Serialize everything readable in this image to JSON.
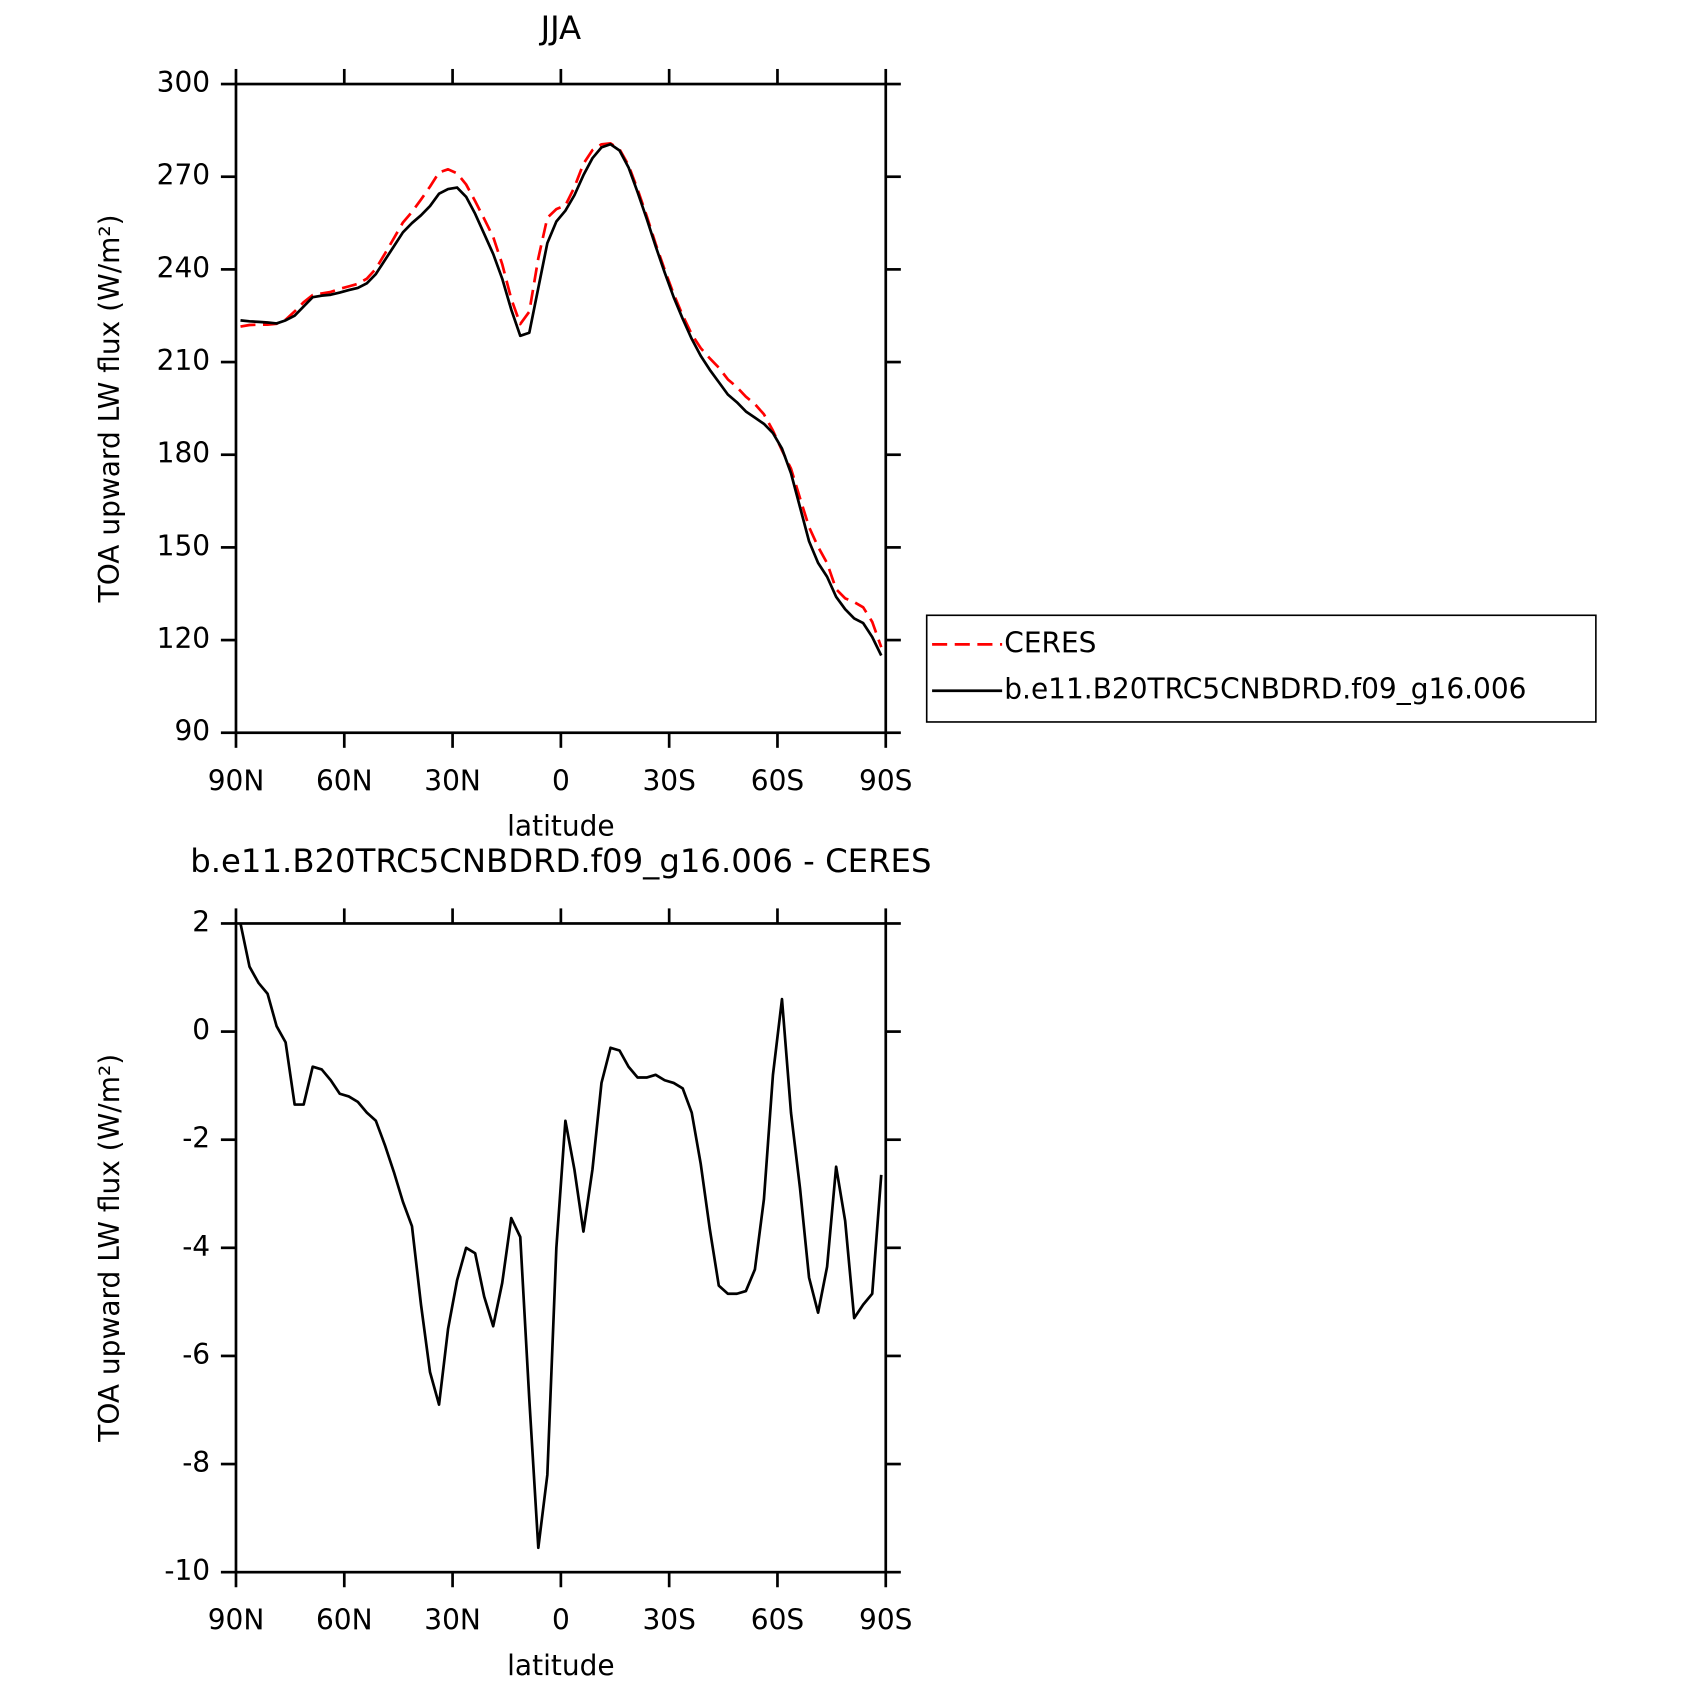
{
  "chart_data": [
    {
      "type": "line",
      "title": "JJA",
      "xlabel": "latitude",
      "ylabel": "TOA upward LW flux (W/m²)",
      "x": [
        88.75,
        86.25,
        83.75,
        81.25,
        78.75,
        76.25,
        73.75,
        71.25,
        68.75,
        66.25,
        63.75,
        61.25,
        58.75,
        56.25,
        53.75,
        51.25,
        48.75,
        46.25,
        43.75,
        41.25,
        38.75,
        36.25,
        33.75,
        31.25,
        28.75,
        26.25,
        23.75,
        21.25,
        18.75,
        16.25,
        13.75,
        11.25,
        8.75,
        6.25,
        3.75,
        1.25,
        -1.25,
        -3.75,
        -6.25,
        -8.75,
        -11.25,
        -13.75,
        -16.25,
        -18.75,
        -21.25,
        -23.75,
        -26.25,
        -28.75,
        -31.25,
        -33.75,
        -36.25,
        -38.75,
        -41.25,
        -43.75,
        -46.25,
        -48.75,
        -51.25,
        -53.75,
        -56.25,
        -58.75,
        -61.25,
        -63.75,
        -66.25,
        -68.75,
        -71.25,
        -73.75,
        -76.25,
        -78.75,
        -81.25,
        -83.75,
        -86.25,
        -88.75
      ],
      "series": [
        {
          "name": "CERES",
          "color": "#ff0000",
          "dashed": true,
          "values": [
            221.5,
            222,
            222.1,
            222.1,
            222.4,
            223.7,
            226.4,
            229.4,
            231.7,
            232.2,
            232.7,
            233.7,
            234.5,
            235.3,
            237,
            240.2,
            245.1,
            250.1,
            255.2,
            258.6,
            262.6,
            266.8,
            271.4,
            272.4,
            271.1,
            267.5,
            262.1,
            256.4,
            250.5,
            241.7,
            230.5,
            222.3,
            226.3,
            243.6,
            256.7,
            259.5,
            260.7,
            266.6,
            274.2,
            278.6,
            280.5,
            280.8,
            278.9,
            273.7,
            265.9,
            257.4,
            248.3,
            239.9,
            232,
            225.1,
            219,
            214.5,
            211.2,
            208.2,
            204.4,
            201.9,
            198.8,
            196.4,
            193.1,
            187.8,
            181.4,
            175.5,
            165.9,
            156.6,
            150.2,
            144.9,
            136.5,
            133.5,
            132.3,
            130.6,
            125.9,
            117.7
          ]
        },
        {
          "name": "b.e11.B20TRC5CNBDRD.f09_g16.006",
          "color": "#000000",
          "dashed": false,
          "values": [
            223.5,
            223.2,
            223,
            222.8,
            222.5,
            223.5,
            225,
            228,
            231,
            231.5,
            231.8,
            232.5,
            233.3,
            234,
            235.5,
            238.5,
            243,
            247.5,
            252,
            255,
            257.5,
            260.5,
            264.5,
            266,
            266.5,
            263.5,
            258,
            251.5,
            245,
            237,
            227,
            218.5,
            219.5,
            234,
            248.5,
            255.5,
            259,
            264,
            270.5,
            276,
            279.5,
            280.5,
            278.5,
            273,
            265,
            256.5,
            247.5,
            239,
            231,
            224,
            217.5,
            212,
            207.5,
            203.5,
            199.5,
            197,
            194,
            192,
            190,
            187,
            182,
            174,
            163,
            152,
            145,
            140.5,
            134,
            130,
            127,
            125.5,
            121,
            115
          ]
        }
      ],
      "xlim": [
        90,
        -90
      ],
      "xticks": [
        {
          "value": 90,
          "label": "90N"
        },
        {
          "value": 60,
          "label": "60N"
        },
        {
          "value": 30,
          "label": "30N"
        },
        0,
        {
          "value": -30,
          "label": "30S"
        },
        {
          "value": -60,
          "label": "60S"
        },
        {
          "value": -90,
          "label": "90S"
        }
      ],
      "ylim": [
        90,
        300
      ],
      "yticks": [
        90,
        120,
        150,
        180,
        210,
        240,
        270,
        300
      ],
      "legend": "right"
    },
    {
      "type": "line",
      "title": "b.e11.B20TRC5CNBDRD.f09_g16.006 - CERES",
      "xlabel": "latitude",
      "ylabel": "TOA upward LW flux (W/m²)",
      "x": [
        88.75,
        86.25,
        83.75,
        81.25,
        78.75,
        76.25,
        73.75,
        71.25,
        68.75,
        66.25,
        63.75,
        61.25,
        58.75,
        56.25,
        53.75,
        51.25,
        48.75,
        46.25,
        43.75,
        41.25,
        38.75,
        36.25,
        33.75,
        31.25,
        28.75,
        26.25,
        23.75,
        21.25,
        18.75,
        16.25,
        13.75,
        11.25,
        8.75,
        6.25,
        3.75,
        1.25,
        -1.25,
        -3.75,
        -6.25,
        -8.75,
        -11.25,
        -13.75,
        -16.25,
        -18.75,
        -21.25,
        -23.75,
        -26.25,
        -28.75,
        -31.25,
        -33.75,
        -36.25,
        -38.75,
        -41.25,
        -43.75,
        -46.25,
        -48.75,
        -51.25,
        -53.75,
        -56.25,
        -58.75,
        -61.25,
        -63.75,
        -66.25,
        -68.75,
        -71.25,
        -73.75,
        -76.25,
        -78.75,
        -81.25,
        -83.75,
        -86.25,
        -88.75
      ],
      "color": "#000000",
      "values": [
        2,
        1.2,
        0.9,
        0.7,
        0.1,
        -0.2,
        -1.35,
        -1.35,
        -0.65,
        -0.7,
        -0.9,
        -1.15,
        -1.2,
        -1.3,
        -1.5,
        -1.65,
        -2.1,
        -2.6,
        -3.15,
        -3.6,
        -5.05,
        -6.3,
        -6.9,
        -5.5,
        -4.6,
        -4,
        -4.1,
        -4.9,
        -5.45,
        -4.65,
        -3.45,
        -3.8,
        -6.8,
        -9.55,
        -8.2,
        -4,
        -1.65,
        -2.55,
        -3.7,
        -2.55,
        -0.95,
        -0.3,
        -0.35,
        -0.65,
        -0.85,
        -0.85,
        -0.8,
        -0.9,
        -0.95,
        -1.05,
        -1.5,
        -2.45,
        -3.65,
        -4.7,
        -4.85,
        -4.85,
        -4.8,
        -4.4,
        -3.1,
        -0.8,
        0.6,
        -1.5,
        -2.9,
        -4.55,
        -5.2,
        -4.35,
        -2.5,
        -3.5,
        -5.3,
        -5.05,
        -4.85,
        -2.65
      ],
      "xlim": [
        90,
        -90
      ],
      "xticks": [
        {
          "value": 90,
          "label": "90N"
        },
        {
          "value": 60,
          "label": "60N"
        },
        {
          "value": 30,
          "label": "30N"
        },
        0,
        {
          "value": -30,
          "label": "30S"
        },
        {
          "value": -60,
          "label": "60S"
        },
        {
          "value": -90,
          "label": "90S"
        }
      ],
      "ylim": [
        -10,
        2
      ],
      "yticks": [
        -10,
        -8,
        -6,
        -4,
        -2,
        0,
        2
      ]
    }
  ]
}
